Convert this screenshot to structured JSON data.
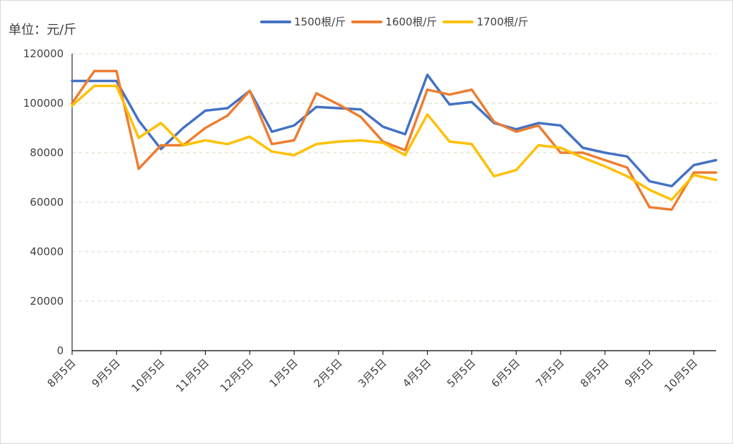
{
  "chart_data": {
    "type": "line",
    "unit_label": "单位：元/斤",
    "title": "",
    "xlabel": "",
    "ylabel": "",
    "ylim": [
      0,
      120000
    ],
    "yticks": [
      "0",
      "20000",
      "40000",
      "60000",
      "80000",
      "100000",
      "120000"
    ],
    "yticks_values": [
      0,
      20000,
      40000,
      60000,
      80000,
      100000,
      120000
    ],
    "grid": true,
    "legend_position": "top-center",
    "x_tick_labels": [
      "8月5日",
      "9月5日",
      "10月5日",
      "11月5日",
      "12月5日",
      "1月5日",
      "2月5日",
      "3月5日",
      "4月5日",
      "5月5日",
      "6月5日",
      "7月5日",
      "8月5日",
      "9月5日",
      "10月5日"
    ],
    "series": [
      {
        "name": "1500根/斤",
        "color": "#4472C4",
        "values": [
          109000,
          109000,
          109000,
          93000,
          81500,
          90000,
          97000,
          98000,
          105000,
          88500,
          91000,
          98500,
          98000,
          97500,
          90500,
          87500,
          111500,
          99500,
          100500,
          92000,
          89500,
          92000,
          91000,
          82000,
          80000,
          78500,
          68500,
          66500,
          75000,
          77000
        ]
      },
      {
        "name": "1600根/斤",
        "color": "#ED7D31",
        "values": [
          100000,
          113000,
          113000,
          73500,
          83000,
          83000,
          90000,
          95000,
          105000,
          83500,
          85000,
          104000,
          99500,
          94500,
          84500,
          81000,
          105500,
          103500,
          105500,
          92500,
          88500,
          91000,
          80000,
          80000,
          77000,
          74000,
          58000,
          57000,
          72000,
          72000
        ]
      },
      {
        "name": "1700根/斤",
        "color": "#FFC000",
        "values": [
          99000,
          107000,
          107000,
          86000,
          92000,
          83000,
          85000,
          83500,
          86500,
          80500,
          79000,
          83500,
          84500,
          85000,
          84000,
          79000,
          95500,
          84500,
          83500,
          70500,
          73000,
          83000,
          82000,
          78000,
          74500,
          70500,
          65000,
          61000,
          71000,
          69000
        ]
      }
    ]
  }
}
